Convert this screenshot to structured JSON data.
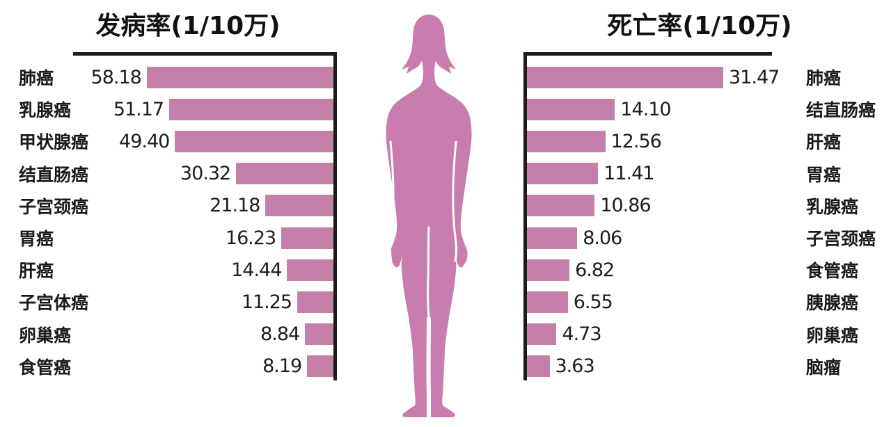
{
  "chart_data": [
    {
      "id": "incidence",
      "type": "bar",
      "orientation": "horizontal",
      "bar_direction": "right-to-left",
      "title": "发病率(1/10万)",
      "unit": "1/10万",
      "categories": [
        "肺癌",
        "乳腺癌",
        "甲状腺癌",
        "结直肠癌",
        "子宫颈癌",
        "胃癌",
        "肝癌",
        "子宫体癌",
        "卵巢癌",
        "食管癌"
      ],
      "values": [
        58.18,
        51.17,
        49.4,
        30.32,
        21.18,
        16.23,
        14.44,
        11.25,
        8.84,
        8.19
      ],
      "value_labels": [
        "58.18",
        "51.17",
        "49.40",
        "30.32",
        "21.18",
        "16.23",
        "14.44",
        "11.25",
        "8.84",
        "8.19"
      ],
      "xlim": [
        0,
        60
      ],
      "grid": false,
      "legend": "none"
    },
    {
      "id": "mortality",
      "type": "bar",
      "orientation": "horizontal",
      "bar_direction": "left-to-right",
      "title": "死亡率(1/10万)",
      "unit": "1/10万",
      "categories": [
        "肺癌",
        "结直肠癌",
        "肝癌",
        "胃癌",
        "乳腺癌",
        "子宫颈癌",
        "食管癌",
        "胰腺癌",
        "卵巢癌",
        "脑瘤"
      ],
      "values": [
        31.47,
        14.1,
        12.56,
        11.41,
        10.86,
        8.06,
        6.82,
        6.55,
        4.73,
        3.63
      ],
      "value_labels": [
        "31.47",
        "14.10",
        "12.56",
        "11.41",
        "10.86",
        "8.06",
        "6.82",
        "6.55",
        "4.73",
        "3.63"
      ],
      "xlim": [
        0,
        35
      ],
      "grid": false,
      "legend": "none"
    }
  ],
  "figure": {
    "name": "female-silhouette",
    "description": "standing woman silhouette between the two charts"
  },
  "colors": {
    "bar": "#c480aa",
    "silhouette": "#c87dae",
    "axis": "#1c1c1c",
    "text": "#1d1d1d",
    "background": "#ffffff"
  }
}
